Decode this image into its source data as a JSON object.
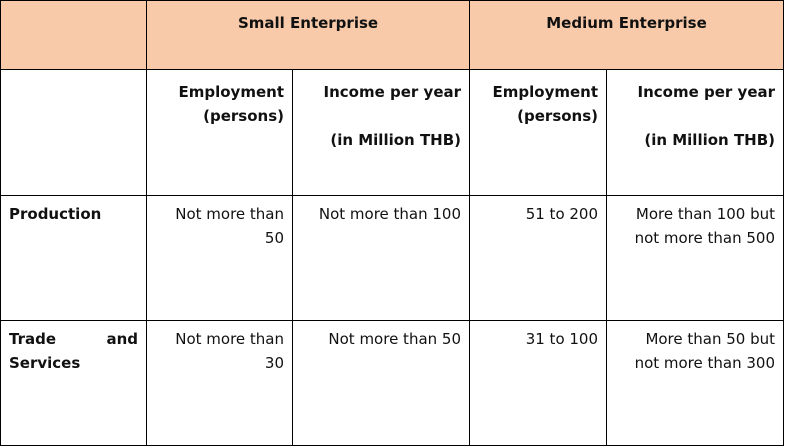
{
  "header": {
    "small": "Small Enterprise",
    "medium": "Medium Enterprise"
  },
  "subheader": {
    "employment_line1": "Employment",
    "employment_line2": "(persons)",
    "income_line1": "Income per year",
    "income_line2": "(in Million THB)"
  },
  "rows": [
    {
      "label_line1": "Production",
      "small_employment": [
        "Not more  than",
        "50"
      ],
      "small_income": "Not more than 100",
      "medium_employment": "51 to 200",
      "medium_income": [
        "More than 100 but",
        "not more than 500"
      ]
    },
    {
      "label_word1": "Trade",
      "label_word2": "and",
      "label_line2": "Services",
      "small_employment": [
        "Not more than",
        "30"
      ],
      "small_income": "Not more than 50",
      "medium_employment": "31 to 100",
      "medium_income": [
        "More than 50 but",
        "not more than 300"
      ]
    }
  ],
  "colors": {
    "header_fill": "#f8caa9",
    "border": "#000000"
  }
}
